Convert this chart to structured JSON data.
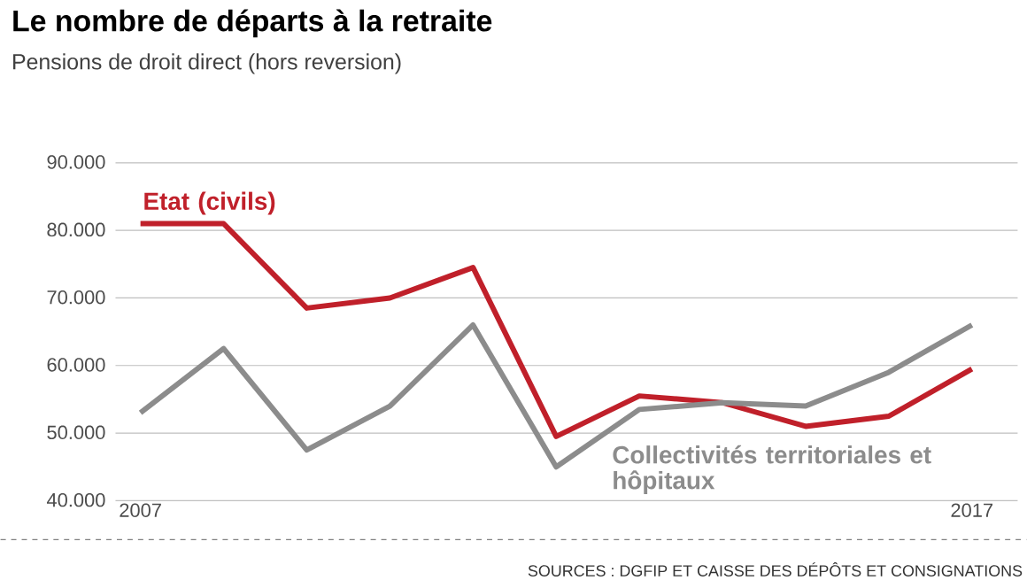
{
  "chart_data": {
    "type": "line",
    "title": "Le nombre de départs à la retraite",
    "subtitle": "Pensions de droit direct (hors reversion)",
    "x": [
      2007,
      2008,
      2009,
      2010,
      2011,
      2012,
      2013,
      2014,
      2015,
      2016,
      2017
    ],
    "series": [
      {
        "name": "Etat (civils)",
        "color": "#c0202a",
        "values": [
          81000,
          81000,
          68500,
          70000,
          74500,
          49500,
          55500,
          54500,
          51000,
          52500,
          59500
        ]
      },
      {
        "name": "Collectivités territoriales et hôpitaux",
        "color": "#8c8c8c",
        "values": [
          53000,
          62500,
          47500,
          54000,
          66000,
          45000,
          53500,
          54500,
          54000,
          59000,
          66000
        ]
      }
    ],
    "xlim": [
      2006.7,
      2017.55
    ],
    "ylim": [
      40000,
      90000
    ],
    "xticks": [
      2007,
      2017
    ],
    "yticks": [
      {
        "value": 40000,
        "label": "40.000"
      },
      {
        "value": 50000,
        "label": "50.000"
      },
      {
        "value": 60000,
        "label": "60.000"
      },
      {
        "value": 70000,
        "label": "70.000"
      },
      {
        "value": 80000,
        "label": "80.000"
      },
      {
        "value": 90000,
        "label": "90.000"
      }
    ],
    "grid": "y",
    "legend": false,
    "marker": "none",
    "line_style": "solid",
    "annotations": [
      "SOURCES : DGFIP ET CAISSE DES DÉPÔTS ET CONSIGNATIONS"
    ]
  }
}
